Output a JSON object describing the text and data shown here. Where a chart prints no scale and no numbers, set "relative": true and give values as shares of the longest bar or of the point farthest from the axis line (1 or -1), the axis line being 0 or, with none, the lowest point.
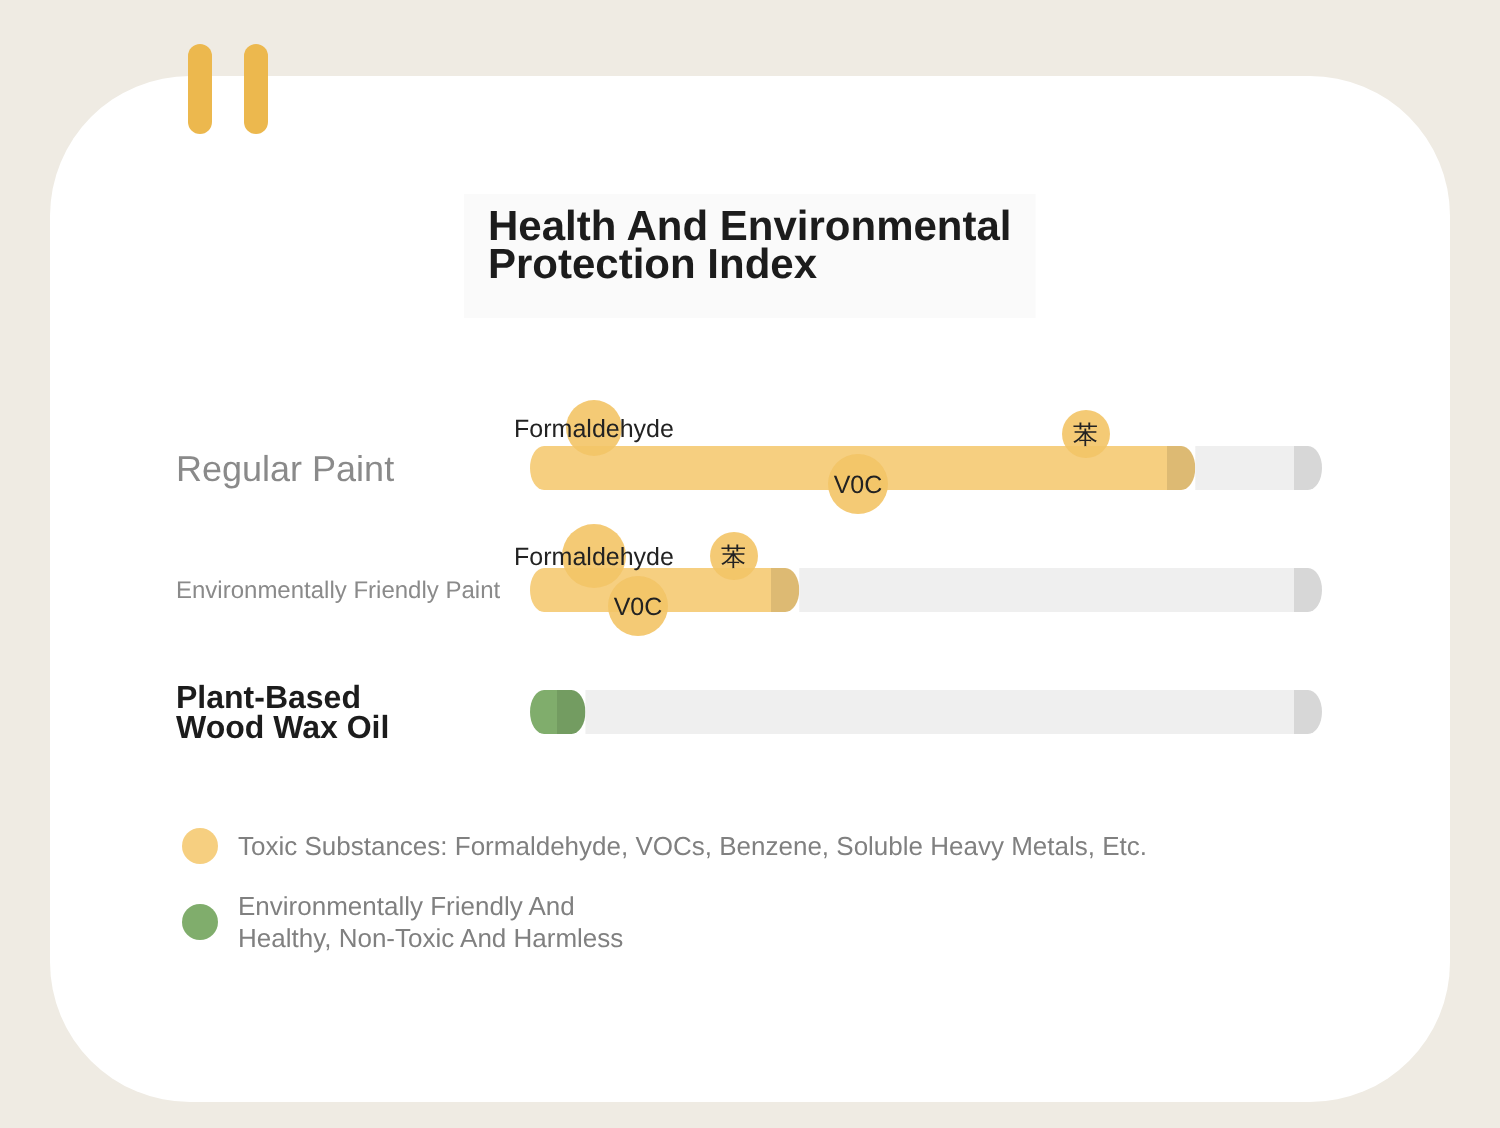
{
  "chart_data": {
    "type": "bar",
    "orientation": "horizontal",
    "stacked": true,
    "relative": true,
    "title": "Health And Environmental Protection Index",
    "categories": [
      "Regular Paint",
      "Environmentally Friendly Paint",
      "Plant-Based\nWood Wax Oil"
    ],
    "series": [
      {
        "name": "Toxic Substances: Formaldehyde, VOCs, Benzene, Soluble Heavy Metals, Etc.",
        "color": "#f6cf80",
        "values": [
          0.84,
          0.34,
          null
        ]
      },
      {
        "name": "Environmentally Friendly And\nHealthy, Non-Toxic And Harmless",
        "color": "#80ad6c",
        "values": [
          null,
          null,
          0.07
        ]
      },
      {
        "color": "#efefef",
        "values": [
          0.16,
          0.66,
          0.93
        ]
      }
    ],
    "annotations": [
      "Formaldehyde",
      "苯",
      "V0C",
      "Formaldehyde",
      "苯",
      "V0C"
    ],
    "legend": "bottom"
  }
}
